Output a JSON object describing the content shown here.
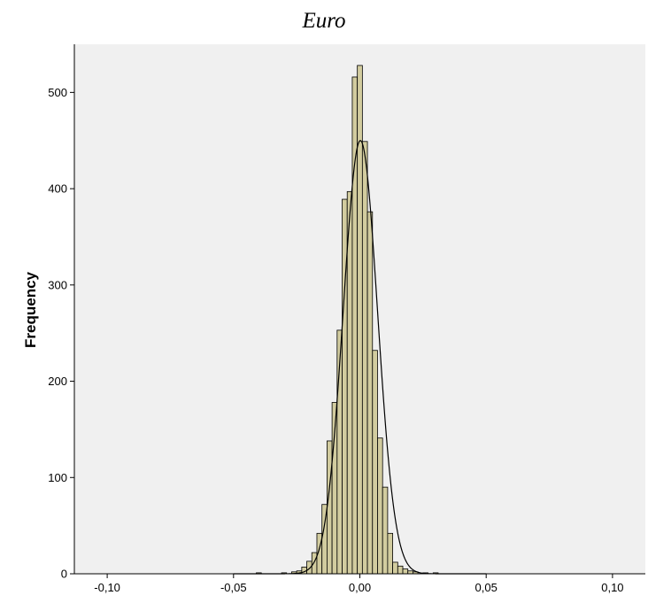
{
  "chart_data": {
    "type": "bar",
    "subtype": "histogram",
    "title": "Euro",
    "xlabel": "",
    "ylabel": "Frequency",
    "xlim": [
      -0.113,
      0.113
    ],
    "ylim": [
      0,
      550
    ],
    "x_ticks": [
      -0.1,
      -0.05,
      0.0,
      0.05,
      0.1
    ],
    "x_tick_labels": [
      "-0,10",
      "-0,05",
      "0,00",
      "0,05",
      "0,10"
    ],
    "y_ticks": [
      0,
      100,
      200,
      300,
      400,
      500
    ],
    "y_tick_labels": [
      "0",
      "100",
      "200",
      "300",
      "400",
      "500"
    ],
    "bin_width": 0.002,
    "bins": [
      {
        "x": -0.04,
        "value": 1
      },
      {
        "x": -0.03,
        "value": 1
      },
      {
        "x": -0.026,
        "value": 2
      },
      {
        "x": -0.024,
        "value": 3
      },
      {
        "x": -0.022,
        "value": 7
      },
      {
        "x": -0.02,
        "value": 13
      },
      {
        "x": -0.018,
        "value": 22
      },
      {
        "x": -0.016,
        "value": 42
      },
      {
        "x": -0.014,
        "value": 72
      },
      {
        "x": -0.012,
        "value": 138
      },
      {
        "x": -0.01,
        "value": 178
      },
      {
        "x": -0.008,
        "value": 253
      },
      {
        "x": -0.006,
        "value": 389
      },
      {
        "x": -0.004,
        "value": 397
      },
      {
        "x": -0.002,
        "value": 516
      },
      {
        "x": 0.0,
        "value": 528
      },
      {
        "x": 0.002,
        "value": 449
      },
      {
        "x": 0.004,
        "value": 376
      },
      {
        "x": 0.006,
        "value": 232
      },
      {
        "x": 0.008,
        "value": 141
      },
      {
        "x": 0.01,
        "value": 90
      },
      {
        "x": 0.012,
        "value": 42
      },
      {
        "x": 0.014,
        "value": 12
      },
      {
        "x": 0.016,
        "value": 8
      },
      {
        "x": 0.018,
        "value": 5
      },
      {
        "x": 0.02,
        "value": 3
      },
      {
        "x": 0.022,
        "value": 2
      },
      {
        "x": 0.026,
        "value": 1
      },
      {
        "x": 0.03,
        "value": 1
      }
    ],
    "normal_curve": {
      "mean": 0.0002,
      "std_dev": 0.0068,
      "peak": 450
    },
    "grid": false,
    "legend": "none",
    "colors": {
      "plot_background": "#f0f0f0",
      "bar_fill": "#d2cc9f",
      "bar_stroke": "#000000",
      "curve": "#000000"
    }
  }
}
